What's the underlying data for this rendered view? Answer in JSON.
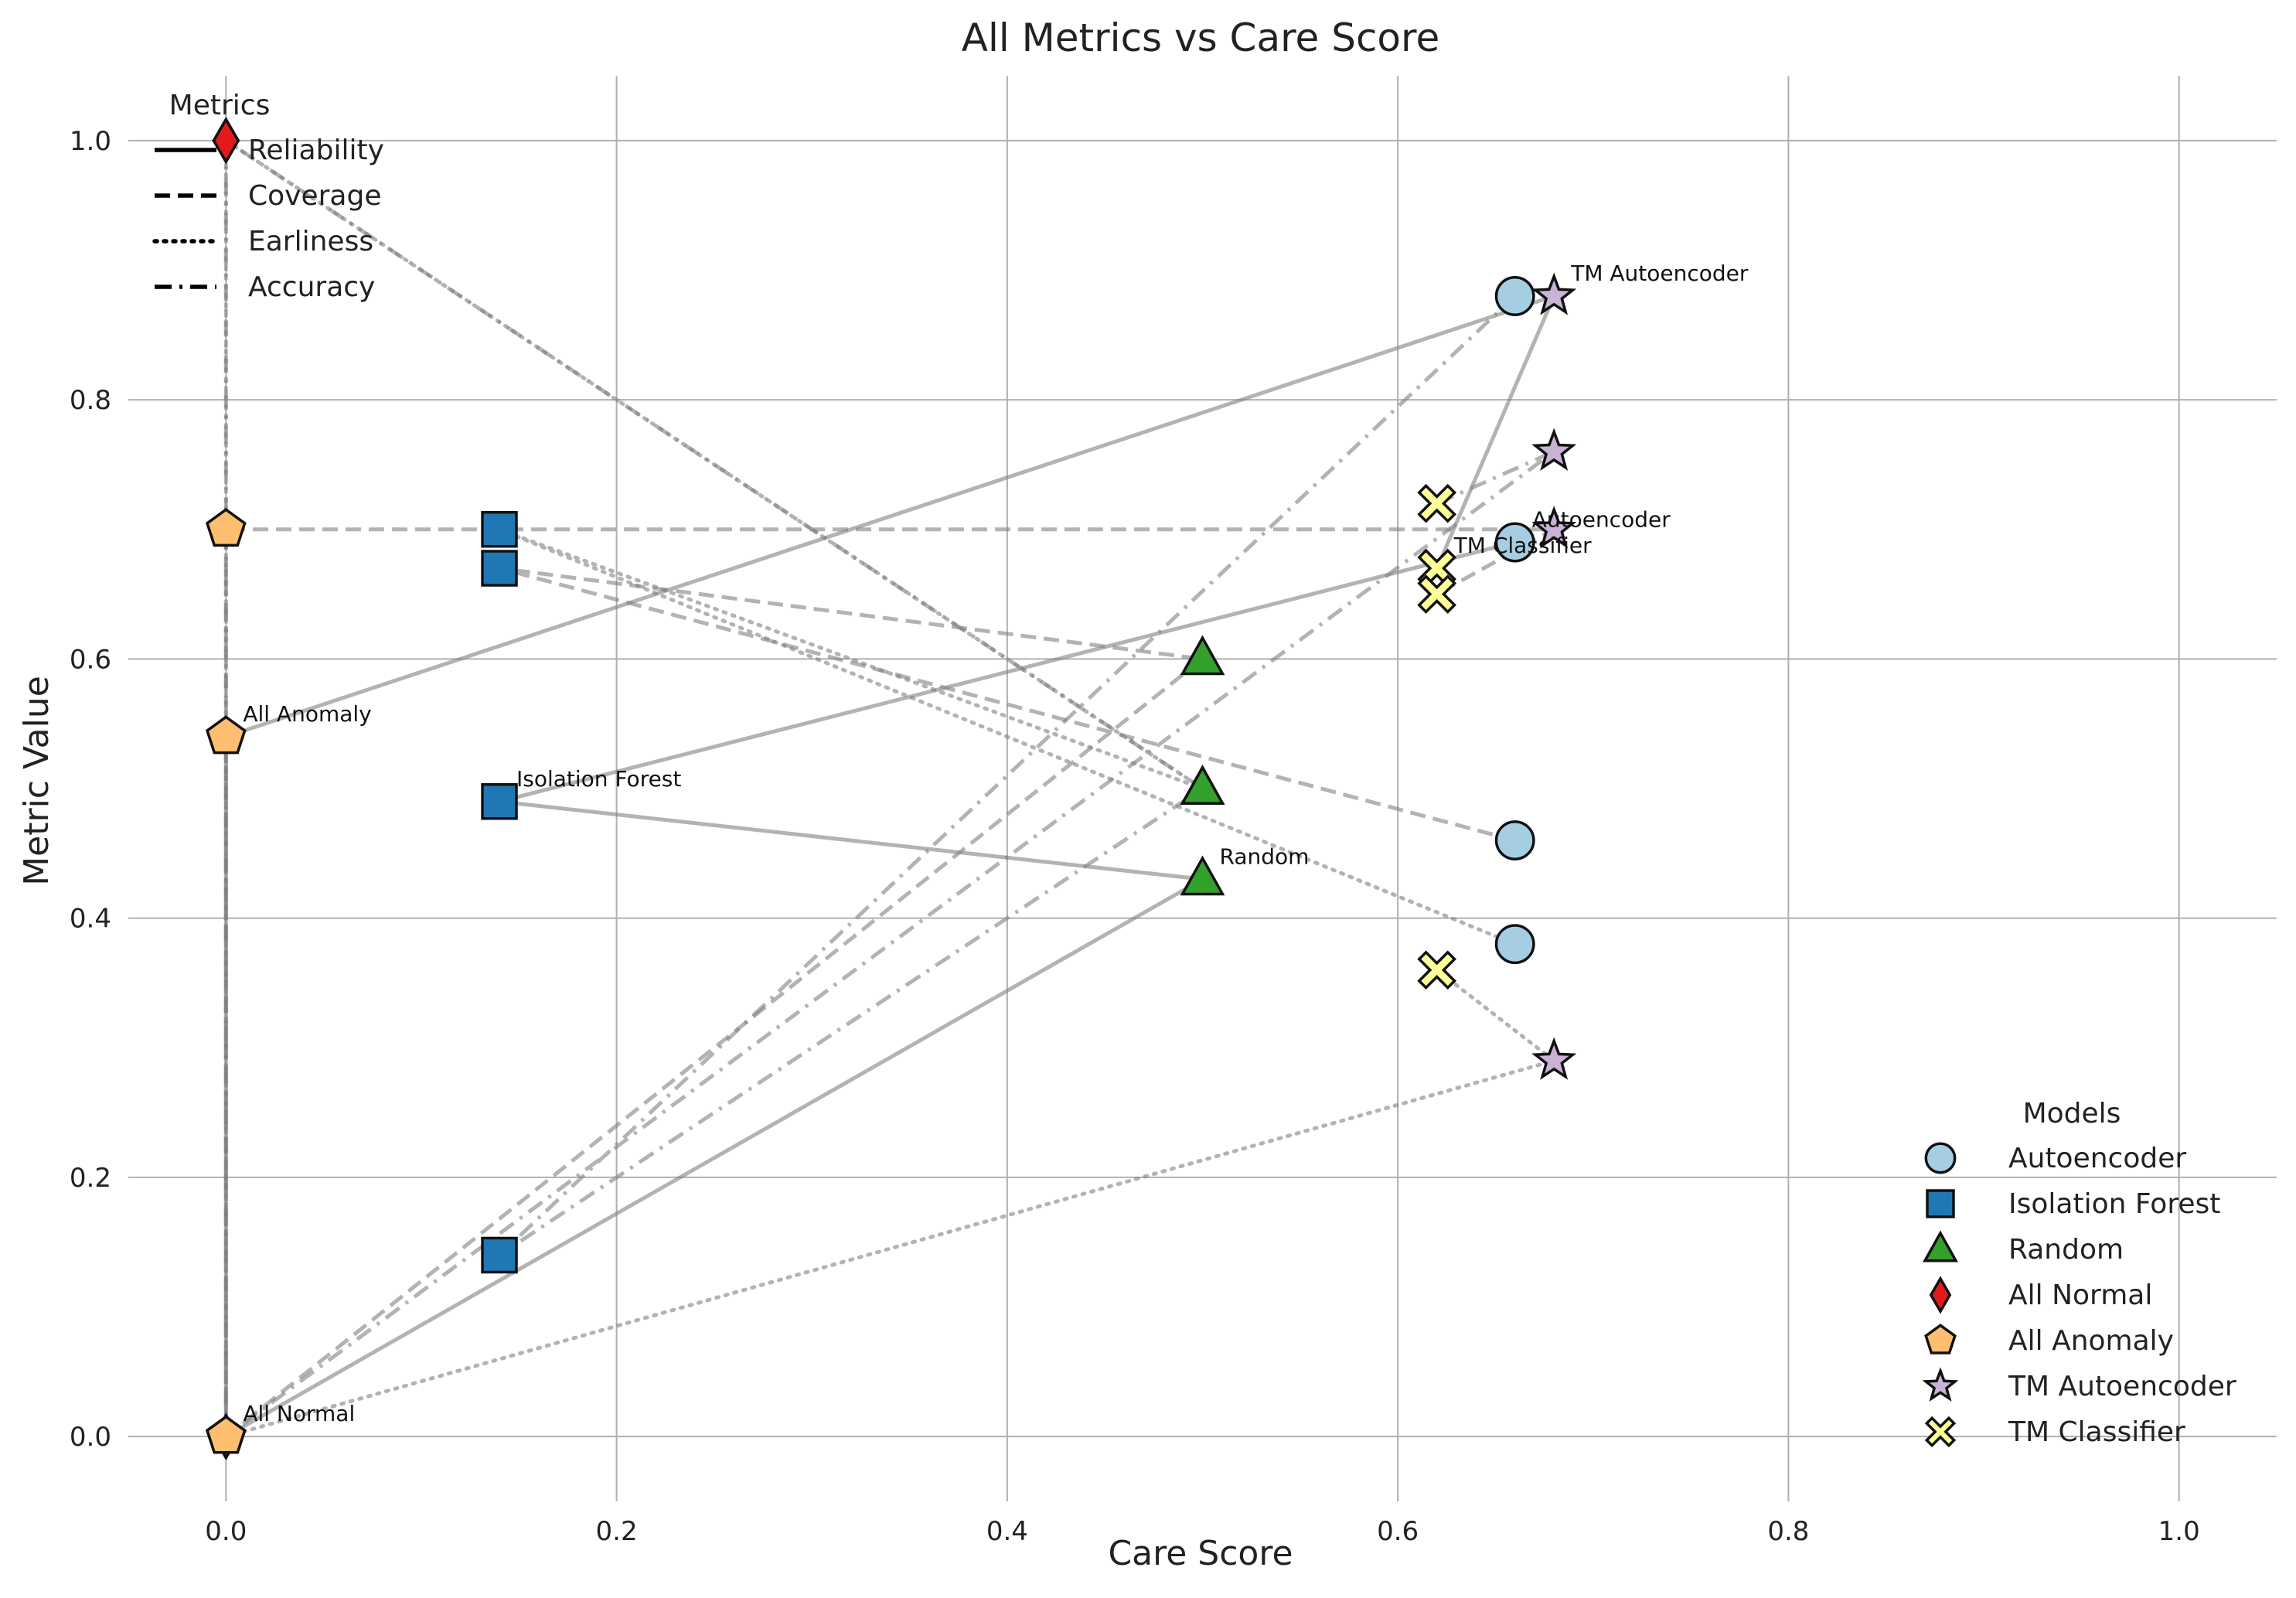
{
  "chart_data": {
    "type": "scatter",
    "title": "All Metrics vs Care Score",
    "xlabel": "Care Score",
    "ylabel": "Metric Value",
    "xlim": [
      -0.05,
      1.05
    ],
    "ylim": [
      -0.05,
      1.05
    ],
    "xticks": [
      "0.0",
      "0.2",
      "0.4",
      "0.6",
      "0.8",
      "1.0"
    ],
    "yticks": [
      "0.0",
      "0.2",
      "0.4",
      "0.6",
      "0.8",
      "1.0"
    ],
    "grid": true,
    "metrics_legend": {
      "title": "Metrics",
      "placement": "top-left",
      "items": [
        {
          "name": "Reliability",
          "dash": "solid"
        },
        {
          "name": "Coverage",
          "dash": "dashed"
        },
        {
          "name": "Earliness",
          "dash": "dotted"
        },
        {
          "name": "Accuracy",
          "dash": "dashdot"
        }
      ]
    },
    "models_legend": {
      "title": "Models",
      "placement": "bottom-right"
    },
    "models": [
      {
        "name": "Autoencoder",
        "marker": "circle",
        "color": "#a6cee3",
        "care": 0.66,
        "reliability": 0.69,
        "coverage": 0.46,
        "earliness": 0.38,
        "accuracy": 0.88
      },
      {
        "name": "Isolation Forest",
        "marker": "square",
        "color": "#1f78b4",
        "care": 0.14,
        "reliability": 0.49,
        "coverage": 0.67,
        "earliness": 0.7,
        "accuracy": 0.14
      },
      {
        "name": "Random",
        "marker": "triangle",
        "color": "#33a02c",
        "care": 0.5,
        "reliability": 0.43,
        "coverage": 0.6,
        "earliness": 0.5,
        "accuracy": 0.5
      },
      {
        "name": "All Normal",
        "marker": "diamond",
        "color": "#e31a1c",
        "care": 0.0,
        "reliability": 0.0,
        "coverage": 0.0,
        "earliness": 1.0,
        "accuracy": 1.0
      },
      {
        "name": "All Anomaly",
        "marker": "pentagon",
        "color": "#fdbf6f",
        "care": 0.0,
        "reliability": 0.54,
        "coverage": 0.7,
        "earliness": 0.0,
        "accuracy": 0.0
      },
      {
        "name": "TM Autoencoder",
        "marker": "star",
        "color": "#cab2d6",
        "care": 0.68,
        "reliability": 0.88,
        "coverage": 0.7,
        "earliness": 0.29,
        "accuracy": 0.76
      },
      {
        "name": "TM Classifier",
        "marker": "x",
        "color": "#ffff99",
        "care": 0.62,
        "reliability": 0.67,
        "coverage": 0.65,
        "earliness": 0.36,
        "accuracy": 0.72
      }
    ],
    "annotations": [
      {
        "text": "All Anomaly",
        "x": 0.0,
        "y": 0.54
      },
      {
        "text": "Isolation Forest",
        "x": 0.14,
        "y": 0.49
      },
      {
        "text": "Random",
        "x": 0.5,
        "y": 0.43
      },
      {
        "text": "Autoencoder",
        "x": 0.66,
        "y": 0.69
      },
      {
        "text": "TM Classifier",
        "x": 0.62,
        "y": 0.67
      },
      {
        "text": "TM Autoencoder",
        "x": 0.68,
        "y": 0.88
      },
      {
        "text": "All Normal",
        "x": 0.0,
        "y": 0.0
      }
    ]
  }
}
